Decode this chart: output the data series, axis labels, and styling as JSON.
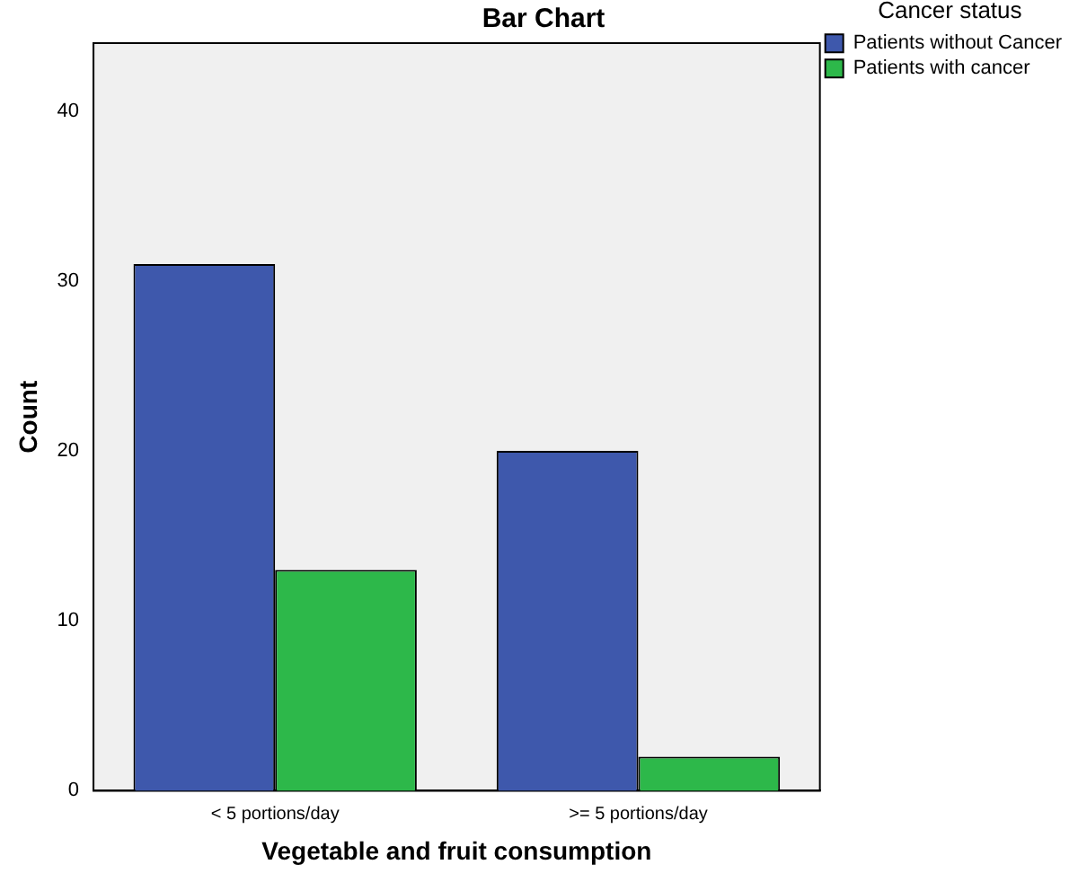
{
  "chart_data": {
    "type": "bar",
    "title": "Bar Chart",
    "xlabel": "Vegetable and fruit consumption",
    "ylabel": "Count",
    "legend_title": "Cancer status",
    "categories": [
      "< 5 portions/day",
      ">= 5 portions/day"
    ],
    "series": [
      {
        "name": "Patients without Cancer",
        "color": "#3e58ac",
        "values": [
          31,
          20
        ]
      },
      {
        "name": "Patients with cancer",
        "color": "#2db84a",
        "values": [
          13,
          2
        ]
      }
    ],
    "ylim": [
      0,
      44
    ],
    "yticks": [
      0,
      10,
      20,
      30,
      40
    ],
    "grid": false,
    "legend": "top right"
  }
}
